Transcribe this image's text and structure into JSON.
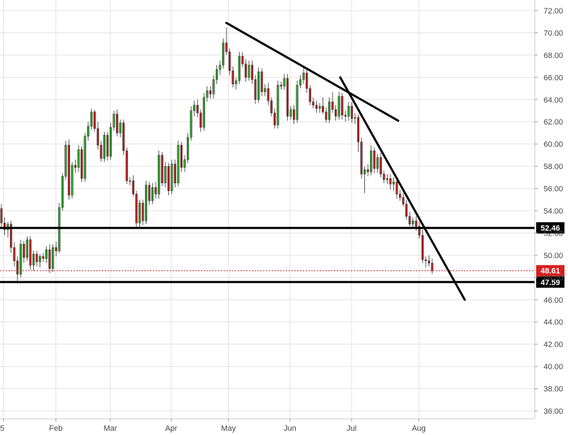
{
  "chart_data": {
    "type": "candlestick",
    "ylim": [
      35.0,
      73.0
    ],
    "y_tick_labels": [
      "72.00",
      "70.00",
      "68.00",
      "66.00",
      "64.00",
      "62.00",
      "60.00",
      "58.00",
      "56.00",
      "54.00",
      "52.00",
      "50.00",
      "48.00",
      "46.00",
      "44.00",
      "42.00",
      "40.00",
      "38.00",
      "36.00"
    ],
    "x_tick_labels": [
      "5",
      "Feb",
      "Mar",
      "Apr",
      "May",
      "Jun",
      "Jul",
      "Aug"
    ],
    "grid": true,
    "colors": {
      "up": "#2ca02c",
      "down": "#b22222",
      "grid": "#e3e3e3",
      "level": "#000000",
      "current": "#d62020"
    },
    "horizontal_levels": [
      {
        "value": 52.46,
        "label": "52.46"
      },
      {
        "value": 47.59,
        "label": "47.59"
      }
    ],
    "current_price": {
      "value": 48.61,
      "label": "48.61"
    },
    "trendlines": [
      {
        "from": [
          0,
          70.9
        ],
        "to": [
          1,
          62.1
        ]
      },
      {
        "from": [
          0,
          66.0
        ],
        "to": [
          1,
          46.0
        ]
      }
    ],
    "candles": [
      [
        54.2,
        54.6,
        52.4,
        52.9
      ],
      [
        52.9,
        53.4,
        51.8,
        52.3
      ],
      [
        52.3,
        53.0,
        51.6,
        52.8
      ],
      [
        52.8,
        53.1,
        50.2,
        50.7
      ],
      [
        50.7,
        51.2,
        49.0,
        49.5
      ],
      [
        49.5,
        49.9,
        47.7,
        48.3
      ],
      [
        48.3,
        51.4,
        48.0,
        51.0
      ],
      [
        51.0,
        51.3,
        49.3,
        49.8
      ],
      [
        49.8,
        51.7,
        49.5,
        51.4
      ],
      [
        51.4,
        51.7,
        48.7,
        49.1
      ],
      [
        49.1,
        50.4,
        48.6,
        50.1
      ],
      [
        50.1,
        50.4,
        49.0,
        49.4
      ],
      [
        49.4,
        50.1,
        48.9,
        49.9
      ],
      [
        49.9,
        50.2,
        49.4,
        49.7
      ],
      [
        49.7,
        50.8,
        49.3,
        50.5
      ],
      [
        50.5,
        51.0,
        48.4,
        48.8
      ],
      [
        48.8,
        51.0,
        48.5,
        50.7
      ],
      [
        50.7,
        51.2,
        49.9,
        50.4
      ],
      [
        50.4,
        54.7,
        50.2,
        54.3
      ],
      [
        54.3,
        57.4,
        54.0,
        57.1
      ],
      [
        57.1,
        60.3,
        56.8,
        59.9
      ],
      [
        59.9,
        60.4,
        55.0,
        55.4
      ],
      [
        55.4,
        58.4,
        55.1,
        58.1
      ],
      [
        58.1,
        58.6,
        57.4,
        57.9
      ],
      [
        57.9,
        59.9,
        57.5,
        59.5
      ],
      [
        59.5,
        59.8,
        56.6,
        56.9
      ],
      [
        56.9,
        61.0,
        56.6,
        60.7
      ],
      [
        60.7,
        62.0,
        60.3,
        61.6
      ],
      [
        61.6,
        63.2,
        61.3,
        62.9
      ],
      [
        62.9,
        63.1,
        61.1,
        61.4
      ],
      [
        61.4,
        62.0,
        59.5,
        59.9
      ],
      [
        59.9,
        60.3,
        58.4,
        58.7
      ],
      [
        58.7,
        61.1,
        58.4,
        60.8
      ],
      [
        60.8,
        61.1,
        58.5,
        58.9
      ],
      [
        58.9,
        61.9,
        58.6,
        61.5
      ],
      [
        61.5,
        63.0,
        61.2,
        62.7
      ],
      [
        62.7,
        63.1,
        60.7,
        61.0
      ],
      [
        61.0,
        62.2,
        60.6,
        61.9
      ],
      [
        61.9,
        62.2,
        59.0,
        59.4
      ],
      [
        59.4,
        59.7,
        56.4,
        56.7
      ],
      [
        56.7,
        57.0,
        56.3,
        56.7
      ],
      [
        56.7,
        57.2,
        55.3,
        55.5
      ],
      [
        55.5,
        55.8,
        52.5,
        52.9
      ],
      [
        52.9,
        55.0,
        52.5,
        54.7
      ],
      [
        54.7,
        55.0,
        52.7,
        53.1
      ],
      [
        53.1,
        56.7,
        52.8,
        56.3
      ],
      [
        56.3,
        56.6,
        54.5,
        54.9
      ],
      [
        54.9,
        56.5,
        54.6,
        56.1
      ],
      [
        56.1,
        56.6,
        55.1,
        55.5
      ],
      [
        55.5,
        59.4,
        55.1,
        59.0
      ],
      [
        59.0,
        59.3,
        56.2,
        56.5
      ],
      [
        56.5,
        58.4,
        56.1,
        58.0
      ],
      [
        58.0,
        58.3,
        55.4,
        55.8
      ],
      [
        55.8,
        58.6,
        55.5,
        58.2
      ],
      [
        58.2,
        58.6,
        56.1,
        56.5
      ],
      [
        56.5,
        60.3,
        56.2,
        59.9
      ],
      [
        59.9,
        60.2,
        57.5,
        57.9
      ],
      [
        57.9,
        59.0,
        57.5,
        58.6
      ],
      [
        58.6,
        61.0,
        58.3,
        60.6
      ],
      [
        60.6,
        63.4,
        60.3,
        63.0
      ],
      [
        63.0,
        63.9,
        62.5,
        63.5
      ],
      [
        63.5,
        64.0,
        62.4,
        62.8
      ],
      [
        62.8,
        63.1,
        61.1,
        61.5
      ],
      [
        61.5,
        64.6,
        61.2,
        64.2
      ],
      [
        64.2,
        65.2,
        63.8,
        64.8
      ],
      [
        64.8,
        65.2,
        64.1,
        64.5
      ],
      [
        64.5,
        66.2,
        64.1,
        65.8
      ],
      [
        65.8,
        67.1,
        65.4,
        66.7
      ],
      [
        66.7,
        67.5,
        66.2,
        67.1
      ],
      [
        67.1,
        69.5,
        66.8,
        69.1
      ],
      [
        69.1,
        70.5,
        68.0,
        68.3
      ],
      [
        68.3,
        68.6,
        66.2,
        66.6
      ],
      [
        66.6,
        67.0,
        65.1,
        65.4
      ],
      [
        65.4,
        66.0,
        64.9,
        65.7
      ],
      [
        65.7,
        68.3,
        65.4,
        67.9
      ],
      [
        67.9,
        68.3,
        66.9,
        67.2
      ],
      [
        67.2,
        67.6,
        65.6,
        66.0
      ],
      [
        66.0,
        67.5,
        65.7,
        67.1
      ],
      [
        67.1,
        67.5,
        65.4,
        65.8
      ],
      [
        65.8,
        66.2,
        63.6,
        64.0
      ],
      [
        64.0,
        66.9,
        63.7,
        66.5
      ],
      [
        66.5,
        66.8,
        64.3,
        64.7
      ],
      [
        64.7,
        65.4,
        64.3,
        65.0
      ],
      [
        65.0,
        65.5,
        63.5,
        63.9
      ],
      [
        63.9,
        64.2,
        62.5,
        62.8
      ],
      [
        62.8,
        63.2,
        61.4,
        61.7
      ],
      [
        61.7,
        65.7,
        61.4,
        65.3
      ],
      [
        65.3,
        65.6,
        64.9,
        65.2
      ],
      [
        65.2,
        66.3,
        64.9,
        65.9
      ],
      [
        65.9,
        66.3,
        62.1,
        62.5
      ],
      [
        62.5,
        63.4,
        62.2,
        63.1
      ],
      [
        63.1,
        63.5,
        61.8,
        62.2
      ],
      [
        62.2,
        65.7,
        61.9,
        65.3
      ],
      [
        65.3,
        66.2,
        65.0,
        65.8
      ],
      [
        65.8,
        66.9,
        65.4,
        66.4
      ],
      [
        66.4,
        66.8,
        64.6,
        65.0
      ],
      [
        65.0,
        65.3,
        63.5,
        63.8
      ],
      [
        63.8,
        64.2,
        63.2,
        63.5
      ],
      [
        63.5,
        63.9,
        62.8,
        63.2
      ],
      [
        63.2,
        63.7,
        62.8,
        63.4
      ],
      [
        63.4,
        64.2,
        62.7,
        62.9
      ],
      [
        62.9,
        63.3,
        61.9,
        62.2
      ],
      [
        62.2,
        64.2,
        61.9,
        63.8
      ],
      [
        63.8,
        64.7,
        62.8,
        63.1
      ],
      [
        63.1,
        63.5,
        62.1,
        62.5
      ],
      [
        62.5,
        64.7,
        62.2,
        64.3
      ],
      [
        64.3,
        64.6,
        62.2,
        62.6
      ],
      [
        62.6,
        63.0,
        62.0,
        62.5
      ],
      [
        62.5,
        63.8,
        62.1,
        63.4
      ],
      [
        63.4,
        63.8,
        61.9,
        62.3
      ],
      [
        62.3,
        62.8,
        61.8,
        62.4
      ],
      [
        62.4,
        62.7,
        59.3,
        60.2
      ],
      [
        60.2,
        60.6,
        56.9,
        57.3
      ],
      [
        57.3,
        58.0,
        55.6,
        57.7
      ],
      [
        57.7,
        58.2,
        57.1,
        57.5
      ],
      [
        57.5,
        59.9,
        57.2,
        59.4
      ],
      [
        59.4,
        59.7,
        57.4,
        57.8
      ],
      [
        57.8,
        59.1,
        57.4,
        58.8
      ],
      [
        58.8,
        59.2,
        57.0,
        57.3
      ],
      [
        57.3,
        57.6,
        56.5,
        56.8
      ],
      [
        56.8,
        57.3,
        56.4,
        56.9
      ],
      [
        56.9,
        57.3,
        55.9,
        56.4
      ],
      [
        56.4,
        57.0,
        55.8,
        56.6
      ],
      [
        56.6,
        57.0,
        55.1,
        55.5
      ],
      [
        55.5,
        55.9,
        54.9,
        55.2
      ],
      [
        55.2,
        55.6,
        54.4,
        54.6
      ],
      [
        54.6,
        55.0,
        53.2,
        53.5
      ],
      [
        53.5,
        53.9,
        52.6,
        52.8
      ],
      [
        52.8,
        53.4,
        52.4,
        53.1
      ],
      [
        53.1,
        53.5,
        52.2,
        52.6
      ],
      [
        52.6,
        53.0,
        51.5,
        51.8
      ],
      [
        51.8,
        52.3,
        49.3,
        49.6
      ],
      [
        49.6,
        49.9,
        48.9,
        49.5
      ],
      [
        49.5,
        50.0,
        49.0,
        49.3
      ],
      [
        49.3,
        49.7,
        48.3,
        48.6
      ]
    ]
  }
}
